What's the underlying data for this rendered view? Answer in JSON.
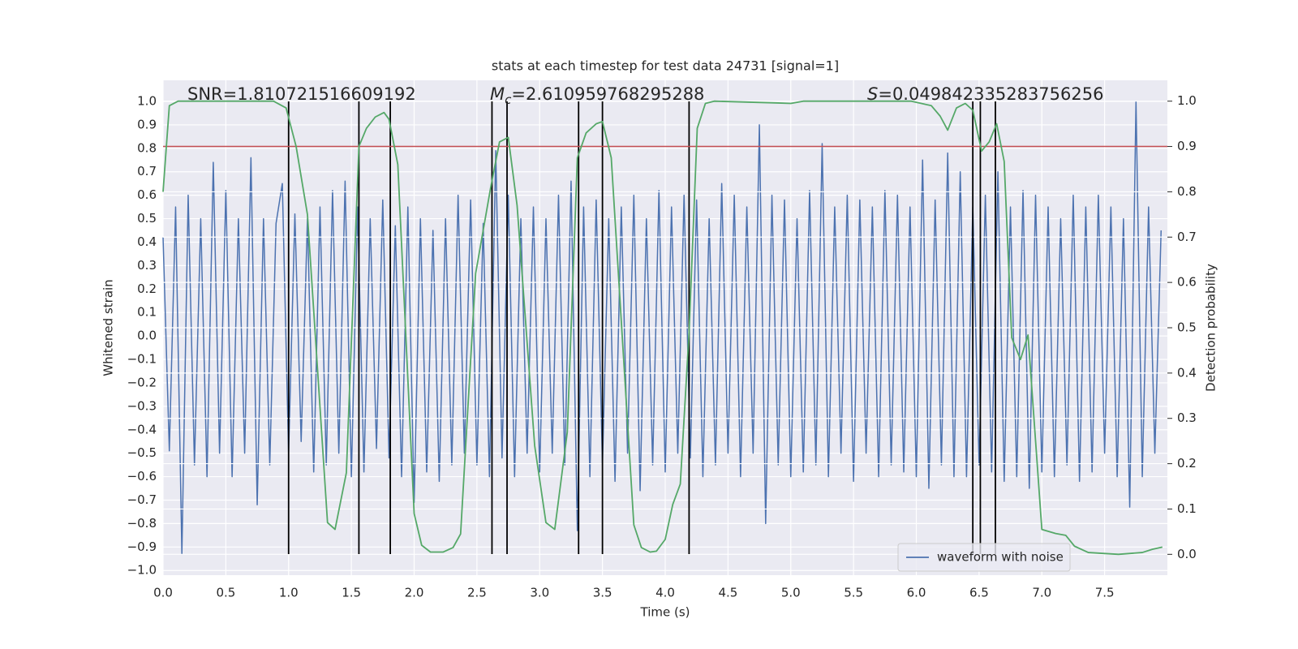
{
  "chart_data": {
    "type": "line",
    "title": "stats at each timestep for test data 24731 [signal=1]",
    "x_label": "Time (s)",
    "y_label": "Whitened strain",
    "y2_label": "Detection probability",
    "xlim": [
      0,
      8
    ],
    "ylim": [
      -1.02,
      1.09
    ],
    "y2lim": [
      -0.046,
      1.046
    ],
    "xticks": [
      {
        "value": 0,
        "label": "0.0"
      },
      0.5,
      {
        "value": 1,
        "label": "1.0"
      },
      1.5,
      {
        "value": 2,
        "label": "2.0"
      },
      2.5,
      {
        "value": 3,
        "label": "3.0"
      },
      3.5,
      {
        "value": 4,
        "label": "4.0"
      },
      4.5,
      {
        "value": 5,
        "label": "5.0"
      },
      5.5,
      {
        "value": 6,
        "label": "6.0"
      },
      6.5,
      {
        "value": 7,
        "label": "7.0"
      },
      7.5
    ],
    "yticks": [
      {
        "value": -1,
        "label": "−1.0"
      },
      {
        "value": -0.9,
        "label": "−0.9"
      },
      {
        "value": -0.8,
        "label": "−0.8"
      },
      {
        "value": -0.7,
        "label": "−0.7"
      },
      {
        "value": -0.6,
        "label": "−0.6"
      },
      {
        "value": -0.5,
        "label": "−0.5"
      },
      {
        "value": -0.4,
        "label": "−0.4"
      },
      {
        "value": -0.3,
        "label": "−0.3"
      },
      {
        "value": -0.2,
        "label": "−0.2"
      },
      {
        "value": -0.1,
        "label": "−0.1"
      },
      {
        "value": 0,
        "label": "0.0"
      },
      0.1,
      0.2,
      0.3,
      0.4,
      0.5,
      0.6,
      0.7,
      0.8,
      0.9,
      {
        "value": 1,
        "label": "1.0"
      }
    ],
    "y2ticks": [
      {
        "value": 0,
        "label": "0.0"
      },
      0.1,
      0.2,
      0.3,
      0.4,
      0.5,
      0.6,
      0.7,
      0.8,
      0.9,
      {
        "value": 1,
        "label": "1.0"
      }
    ],
    "grid": true,
    "legend": "lower right",
    "annotations": [
      {
        "label": "SNR",
        "value_text": "=1.810721516609192"
      },
      {
        "label": "M",
        "subscript": "c",
        "italic": true,
        "value_text": "=2.610959768295288"
      },
      {
        "label": "S",
        "italic": true,
        "value_text": "=0.049842335283756256"
      }
    ],
    "series": [
      {
        "name": "waveform with noise",
        "color": "#4c72b0",
        "x": [
          0,
          0.05,
          0.1,
          0.15,
          0.2,
          0.25,
          0.3,
          0.35,
          0.4,
          0.45,
          0.5,
          0.55,
          0.6,
          0.65,
          0.7,
          0.75,
          0.8,
          0.85,
          0.9,
          0.95,
          1,
          1.05,
          1.1,
          1.15,
          1.2,
          1.25,
          1.3,
          1.35,
          1.4,
          1.45,
          1.5,
          1.55,
          1.6,
          1.65,
          1.7,
          1.75,
          1.8,
          1.85,
          1.9,
          1.95,
          2,
          2.05,
          2.1,
          2.15,
          2.2,
          2.25,
          2.3,
          2.35,
          2.4,
          2.45,
          2.5,
          2.55,
          2.6,
          2.65,
          2.7,
          2.75,
          2.8,
          2.85,
          2.9,
          2.95,
          3,
          3.05,
          3.1,
          3.15,
          3.2,
          3.25,
          3.3,
          3.35,
          3.4,
          3.45,
          3.5,
          3.55,
          3.6,
          3.65,
          3.7,
          3.75,
          3.8,
          3.85,
          3.9,
          3.95,
          4,
          4.05,
          4.1,
          4.15,
          4.2,
          4.25,
          4.3,
          4.35,
          4.4,
          4.45,
          4.5,
          4.55,
          4.6,
          4.65,
          4.7,
          4.75,
          4.8,
          4.85,
          4.9,
          4.95,
          5,
          5.05,
          5.1,
          5.15,
          5.2,
          5.25,
          5.3,
          5.35,
          5.4,
          5.45,
          5.5,
          5.55,
          5.6,
          5.65,
          5.7,
          5.75,
          5.8,
          5.85,
          5.9,
          5.95,
          6,
          6.05,
          6.1,
          6.15,
          6.2,
          6.25,
          6.3,
          6.35,
          6.4,
          6.45,
          6.5,
          6.55,
          6.6,
          6.65,
          6.7,
          6.75,
          6.8,
          6.85,
          6.9,
          6.95,
          7,
          7.05,
          7.1,
          7.15,
          7.2,
          7.25,
          7.3,
          7.35,
          7.4,
          7.45,
          7.5,
          7.55,
          7.6,
          7.65,
          7.7,
          7.75,
          7.8,
          7.85,
          7.9,
          7.95
        ],
        "values": [
          0.42,
          -0.49,
          0.55,
          -0.93,
          0.6,
          -0.55,
          0.5,
          -0.6,
          0.74,
          -0.5,
          0.62,
          -0.6,
          0.5,
          -0.5,
          0.76,
          -0.72,
          0.5,
          -0.55,
          0.48,
          0.65,
          -0.5,
          0.52,
          -0.45,
          0.5,
          -0.58,
          0.55,
          -0.55,
          0.62,
          -0.5,
          0.66,
          -0.6,
          0.55,
          -0.58,
          0.5,
          -0.48,
          0.58,
          -0.52,
          0.47,
          -0.6,
          0.55,
          -0.71,
          0.5,
          -0.58,
          0.45,
          -0.62,
          0.5,
          -0.55,
          0.6,
          -0.5,
          0.58,
          -0.55,
          0.48,
          -0.6,
          0.79,
          -0.52,
          0.6,
          -0.6,
          0.5,
          -0.5,
          0.55,
          -0.58,
          0.5,
          -0.5,
          0.6,
          -0.55,
          0.66,
          -0.83,
          0.55,
          -0.6,
          0.58,
          -0.55,
          0.5,
          -0.62,
          0.55,
          -0.5,
          0.6,
          -0.66,
          0.5,
          -0.55,
          0.62,
          -0.58,
          0.55,
          -0.5,
          0.6,
          -0.52,
          0.58,
          -0.6,
          0.5,
          -0.55,
          0.65,
          -0.5,
          0.6,
          -0.6,
          0.55,
          -0.5,
          0.9,
          -0.8,
          0.6,
          -0.55,
          0.58,
          -0.6,
          0.5,
          -0.58,
          0.62,
          -0.55,
          0.82,
          -0.6,
          0.55,
          -0.5,
          0.6,
          -0.62,
          0.58,
          -0.5,
          0.55,
          -0.6,
          0.62,
          -0.55,
          0.6,
          -0.58,
          0.55,
          -0.6,
          0.75,
          -0.65,
          0.58,
          -0.55,
          0.78,
          -0.6,
          0.7,
          -0.6,
          0.55,
          -0.55,
          0.6,
          -0.58,
          0.7,
          -0.62,
          0.55,
          -0.6,
          0.62,
          -0.65,
          0.6,
          -0.58,
          0.55,
          -0.6,
          0.5,
          -0.55,
          0.6,
          -0.62,
          0.55,
          -0.58,
          0.6,
          -0.5,
          0.55,
          -0.6,
          0.5,
          -0.73,
          1.0,
          -0.6,
          0.55,
          -0.5,
          0.45
        ]
      },
      {
        "color": "#55a868",
        "axis": "y2",
        "x": [
          0,
          0.05,
          0.12,
          0.88,
          0.98,
          1.06,
          1.15,
          1.31,
          1.37,
          1.46,
          1.56,
          1.62,
          1.69,
          1.76,
          1.8,
          1.87,
          2.0,
          2.06,
          2.13,
          2.23,
          2.31,
          2.37,
          2.49,
          2.61,
          2.68,
          2.75,
          2.82,
          2.96,
          3.05,
          3.12,
          3.22,
          3.3,
          3.37,
          3.45,
          3.5,
          3.57,
          3.75,
          3.81,
          3.88,
          3.93,
          4.0,
          4.06,
          4.12,
          4.19,
          4.255,
          4.32,
          4.39,
          4.9,
          5.0,
          5.1,
          5.96,
          6.12,
          6.19,
          6.25,
          6.32,
          6.39,
          6.45,
          6.52,
          6.58,
          6.64,
          6.7,
          6.76,
          6.83,
          6.89,
          7.0,
          7.11,
          7.19,
          7.26,
          7.37,
          7.61,
          7.8,
          7.88,
          7.96
        ],
        "values": [
          0.8,
          0.99,
          1.0,
          1.0,
          0.985,
          0.9,
          0.75,
          0.07,
          0.055,
          0.18,
          0.9,
          0.94,
          0.965,
          0.975,
          0.96,
          0.86,
          0.09,
          0.02,
          0.005,
          0.005,
          0.015,
          0.045,
          0.62,
          0.81,
          0.91,
          0.92,
          0.77,
          0.24,
          0.07,
          0.055,
          0.27,
          0.875,
          0.93,
          0.95,
          0.955,
          0.875,
          0.065,
          0.015,
          0.005,
          0.007,
          0.033,
          0.11,
          0.155,
          0.49,
          0.94,
          0.995,
          1.0,
          0.996,
          0.995,
          1.0,
          1.0,
          0.99,
          0.967,
          0.936,
          0.985,
          0.995,
          0.98,
          0.89,
          0.91,
          0.95,
          0.867,
          0.478,
          0.43,
          0.484,
          0.055,
          0.046,
          0.042,
          0.018,
          0.004,
          0.0,
          0.004,
          0.011,
          0.016
        ]
      }
    ],
    "vlines": {
      "x": [
        1.0,
        1.56,
        1.81,
        2.62,
        2.74,
        3.31,
        3.5,
        4.19,
        6.45,
        6.51,
        6.63
      ],
      "ymin": -0.93,
      "ymax": 1.0,
      "color": "#000000"
    },
    "hline": {
      "axis": "y2",
      "value": 0.9,
      "color": "#c44e52"
    }
  }
}
